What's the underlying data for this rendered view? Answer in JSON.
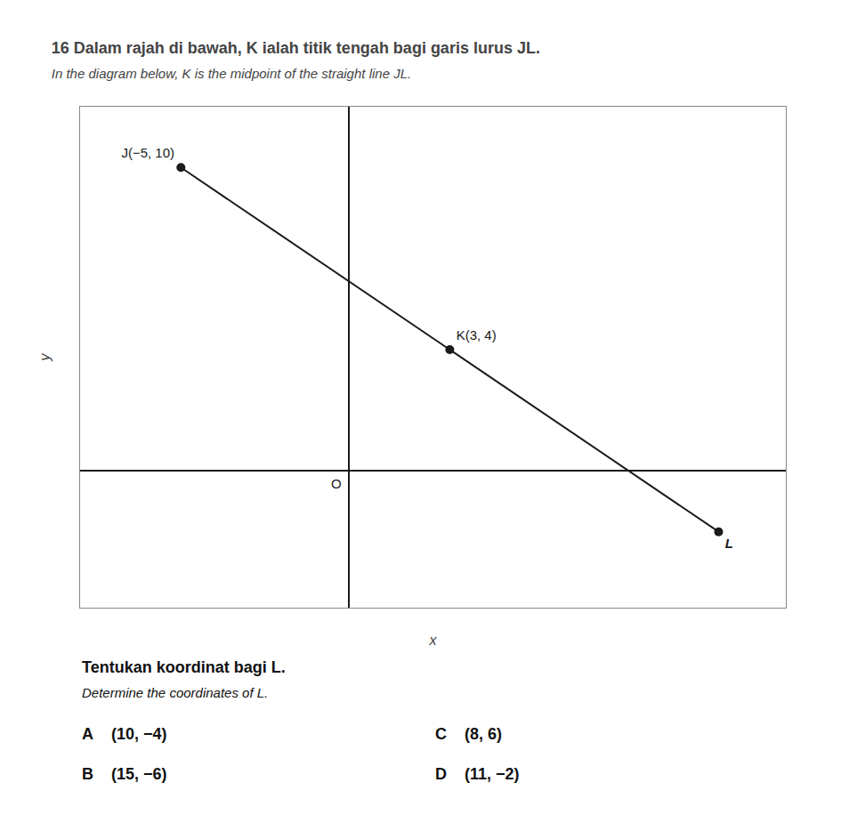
{
  "chart_data": {
    "type": "scatter",
    "title": "16 Dalam rajah di bawah, K ialah titik tengah bagi garis lurus JL.",
    "subtitle": "In the diagram below, K is the midpoint of the straight line JL.",
    "x_label": "x",
    "y_label": "y",
    "x": [
      -5,
      3,
      11
    ],
    "values": [
      10,
      4,
      -2
    ],
    "labels": [
      "J(−5, 10)",
      "K(3, 4)",
      "L"
    ],
    "xlim": [
      -8,
      13
    ],
    "ylim": [
      -4.5,
      12
    ],
    "tick_labels": false,
    "grid": false,
    "color": "#1a1a1a",
    "marker": "circle",
    "line_style": "solid",
    "annotations": [
      "O"
    ],
    "question": [
      "Tentukan koordinat bagi L.",
      "Determine the coordinates of L."
    ],
    "options": [
      {
        "letter": "A",
        "text": "(10, −4)"
      },
      {
        "letter": "B",
        "text": "(15, −6)"
      },
      {
        "letter": "C",
        "text": "(8, 6)"
      },
      {
        "letter": "D",
        "text": "(11, −2)"
      }
    ]
  }
}
